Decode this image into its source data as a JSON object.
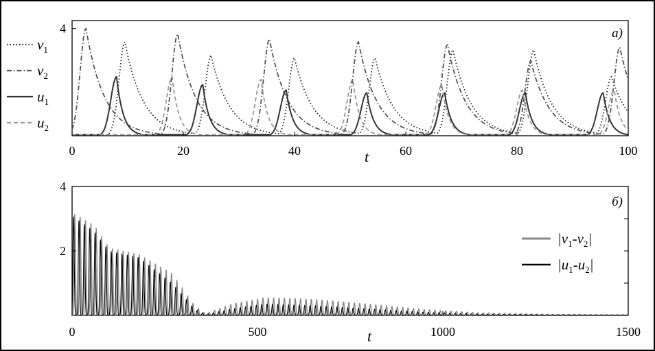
{
  "chart_data": [
    {
      "type": "line",
      "panel_tag": "a)",
      "xlabel": "t",
      "ylabel": "",
      "xlim": [
        0,
        100
      ],
      "ylim": [
        0,
        4.3
      ],
      "x_ticks": [
        0,
        20,
        40,
        60,
        80,
        100
      ],
      "y_ticks": [
        4
      ],
      "legend_placement": "left",
      "series": [
        {
          "name": "v1",
          "style": "dotted",
          "color": "#222222",
          "peaks": [
            {
              "t": 9.5,
              "h": 3.5
            },
            {
              "t": 25.0,
              "h": 3.0
            },
            {
              "t": 40.0,
              "h": 2.9
            },
            {
              "t": 54.5,
              "h": 2.9
            },
            {
              "t": 68.5,
              "h": 3.2
            },
            {
              "t": 83.0,
              "h": 3.2
            },
            {
              "t": 97.0,
              "h": 2.2
            }
          ]
        },
        {
          "name": "v2",
          "style": "dashdot",
          "color": "#555555",
          "peaks": [
            {
              "t": 2.5,
              "h": 4.0
            },
            {
              "t": 19.0,
              "h": 3.8
            },
            {
              "t": 35.5,
              "h": 3.6
            },
            {
              "t": 51.5,
              "h": 3.5
            },
            {
              "t": 67.5,
              "h": 3.4
            },
            {
              "t": 82.5,
              "h": 2.8
            },
            {
              "t": 98.5,
              "h": 3.3
            }
          ]
        },
        {
          "name": "u1",
          "style": "solid",
          "color": "#333333",
          "peaks": [
            {
              "t": 8.0,
              "h": 2.2
            },
            {
              "t": 23.5,
              "h": 1.9
            },
            {
              "t": 38.5,
              "h": 1.7
            },
            {
              "t": 53.0,
              "h": 1.6
            },
            {
              "t": 67.0,
              "h": 1.6
            },
            {
              "t": 81.5,
              "h": 1.6
            },
            {
              "t": 95.5,
              "h": 1.6
            }
          ]
        },
        {
          "name": "u2",
          "style": "dashed",
          "color": "#999999",
          "peaks": [
            {
              "t": 18.0,
              "h": 2.2
            },
            {
              "t": 34.0,
              "h": 2.1
            },
            {
              "t": 50.5,
              "h": 2.1
            },
            {
              "t": 66.5,
              "h": 1.9
            },
            {
              "t": 81.0,
              "h": 1.7
            },
            {
              "t": 97.5,
              "h": 1.7
            }
          ]
        }
      ]
    },
    {
      "type": "line",
      "panel_tag": "б)",
      "xlabel": "t",
      "ylabel": "",
      "xlim": [
        0,
        1500
      ],
      "ylim": [
        0,
        4
      ],
      "x_ticks": [
        0,
        500,
        1000,
        1500
      ],
      "y_ticks": [
        2,
        4
      ],
      "legend_placement": "right",
      "series": [
        {
          "name": "|v1-v2|",
          "color": "#888888",
          "envelope": [
            {
              "t": 0,
              "a": 3.2
            },
            {
              "t": 60,
              "a": 2.8
            },
            {
              "t": 100,
              "a": 2.1
            },
            {
              "t": 180,
              "a": 1.9
            },
            {
              "t": 270,
              "a": 1.3
            },
            {
              "t": 330,
              "a": 0.3
            },
            {
              "t": 360,
              "a": 0.05
            },
            {
              "t": 430,
              "a": 0.35
            },
            {
              "t": 520,
              "a": 0.55
            },
            {
              "t": 650,
              "a": 0.5
            },
            {
              "t": 800,
              "a": 0.35
            },
            {
              "t": 950,
              "a": 0.18
            },
            {
              "t": 1100,
              "a": 0.08
            },
            {
              "t": 1300,
              "a": 0.03
            },
            {
              "t": 1500,
              "a": 0.02
            }
          ]
        },
        {
          "name": "|u1-u2|",
          "color": "#000000",
          "envelope": [
            {
              "t": 0,
              "a": 3.1
            },
            {
              "t": 60,
              "a": 2.6
            },
            {
              "t": 100,
              "a": 2.0
            },
            {
              "t": 180,
              "a": 1.8
            },
            {
              "t": 270,
              "a": 1.0
            },
            {
              "t": 330,
              "a": 0.2
            },
            {
              "t": 360,
              "a": 0.03
            },
            {
              "t": 430,
              "a": 0.2
            },
            {
              "t": 520,
              "a": 0.35
            },
            {
              "t": 650,
              "a": 0.3
            },
            {
              "t": 800,
              "a": 0.2
            },
            {
              "t": 950,
              "a": 0.1
            },
            {
              "t": 1100,
              "a": 0.04
            },
            {
              "t": 1300,
              "a": 0.02
            },
            {
              "t": 1500,
              "a": 0.01
            }
          ]
        }
      ]
    }
  ]
}
